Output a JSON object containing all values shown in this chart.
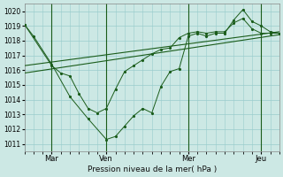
{
  "xlabel": "Pression niveau de la mer( hPa )",
  "bg_color": "#cce8e4",
  "grid_color": "#99cccc",
  "line_color": "#1a5c1a",
  "ylim": [
    1010.5,
    1020.5
  ],
  "xlim": [
    0,
    14
  ],
  "yticks": [
    1011,
    1012,
    1013,
    1014,
    1015,
    1016,
    1017,
    1018,
    1019,
    1020
  ],
  "day_labels": [
    "Mar",
    "Ven",
    "Mer",
    "Jeu"
  ],
  "day_positions": [
    1.5,
    4.5,
    9.0,
    13.0
  ],
  "vline_positions": [
    1.5,
    4.5,
    9.0,
    13.0
  ],
  "trend_x": [
    0,
    14
  ],
  "trend_y": [
    1016.3,
    1018.6
  ],
  "trend2_x": [
    0,
    14
  ],
  "trend2_y": [
    1015.8,
    1018.4
  ],
  "line_deep_x": [
    0,
    0.5,
    1.5,
    2.5,
    3.5,
    4.5,
    5.0,
    5.5,
    6.0,
    6.5,
    7.0,
    7.5,
    8.0,
    8.5,
    9.0,
    9.5,
    10.0,
    10.5,
    11.0,
    11.5,
    12.0,
    12.5,
    13.0,
    13.5,
    14.0
  ],
  "line_deep_y": [
    1019.1,
    1018.3,
    1016.4,
    1014.2,
    1012.7,
    1011.3,
    1011.5,
    1012.2,
    1012.9,
    1013.4,
    1013.1,
    1014.9,
    1015.9,
    1016.1,
    1018.3,
    1018.5,
    1018.3,
    1018.5,
    1018.5,
    1019.4,
    1020.1,
    1019.3,
    1019.0,
    1018.6,
    1018.5
  ],
  "line_shallow_x": [
    0,
    1.5,
    2.0,
    2.5,
    3.0,
    3.5,
    4.0,
    4.5,
    5.0,
    5.5,
    6.0,
    6.5,
    7.0,
    7.5,
    8.0,
    8.5,
    9.0,
    9.5,
    10.0,
    10.5,
    11.0,
    11.5,
    12.0,
    12.5,
    13.0,
    13.5,
    14.0
  ],
  "line_shallow_y": [
    1019.1,
    1016.3,
    1015.8,
    1015.6,
    1014.4,
    1013.4,
    1013.1,
    1013.4,
    1014.7,
    1015.9,
    1016.3,
    1016.7,
    1017.1,
    1017.4,
    1017.5,
    1018.2,
    1018.5,
    1018.6,
    1018.5,
    1018.6,
    1018.6,
    1019.2,
    1019.5,
    1018.8,
    1018.5,
    1018.5,
    1018.5
  ]
}
